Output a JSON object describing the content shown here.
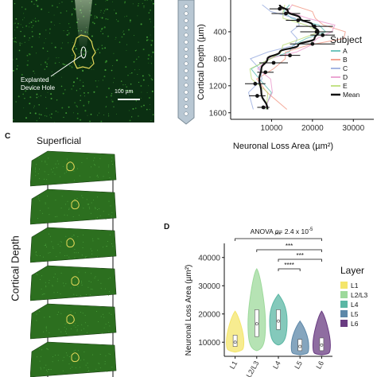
{
  "panel_a": {
    "caption": "Explanted\nDevice Hole",
    "scalebar": "100 µm"
  },
  "panel_b": {
    "y_axis_label": "Cortical Depth (µm)",
    "x_axis_label": "Neuronal Loss Area (µm²)",
    "legend_title": "Subject",
    "legend_colors": {
      "A": "#4fb7ad",
      "B": "#f08e78",
      "C": "#8fa4dc",
      "D": "#e890c8",
      "E": "#b4da6a",
      "Mean": "#111111"
    }
  },
  "panel_c": {
    "label": "C",
    "top_label": "Superficial",
    "side_label": "Cortical Depth",
    "slice_fill": "#2c6f1f",
    "outline_color": "#e6d95a"
  },
  "panel_d": {
    "label": "D",
    "legend_title": "Layer",
    "layer_colors": {
      "L1": "#f4e56b",
      "L2/L3": "#9dd99b",
      "L4": "#5bb7a4",
      "L5": "#5c87a8",
      "L6": "#6a3c82"
    },
    "anova_prefix": "ANOVA ",
    "anova_p": "p",
    "anova_value": "= 2.4 x 10",
    "anova_exp": "-5",
    "significance": [
      "**",
      "***",
      "***",
      "****"
    ]
  },
  "chart_data": [
    {
      "type": "line",
      "orientation": "vertical-depth",
      "xlabel": "Neuronal Loss Area (µm²)",
      "ylabel": "Cortical Depth (µm)",
      "xticks": [
        "10000",
        "20000",
        "30000"
      ],
      "yticks": [
        "400",
        "800",
        "1200",
        "1600"
      ],
      "xlim": [
        0,
        35000
      ],
      "ylim": [
        0,
        1650
      ],
      "legend": [
        "A",
        "B",
        "C",
        "D",
        "E",
        "Mean"
      ],
      "series": [
        {
          "name": "Mean",
          "x": [
            12000,
            14000,
            17000,
            20000,
            21500,
            20500,
            16500,
            12000,
            9000,
            7500,
            7000,
            7500,
            9000
          ],
          "y": [
            0,
            100,
            200,
            300,
            400,
            500,
            600,
            700,
            800,
            950,
            1100,
            1300,
            1550
          ]
        }
      ],
      "mean_points": [
        {
          "x": 12000,
          "y": 60,
          "err": 2500
        },
        {
          "x": 13500,
          "y": 130,
          "err": 3500
        },
        {
          "x": 16500,
          "y": 230,
          "err": 3000
        },
        {
          "x": 20500,
          "y": 320,
          "err": 4500
        },
        {
          "x": 21000,
          "y": 400,
          "err": 4000
        },
        {
          "x": 22500,
          "y": 450,
          "err": 3000
        },
        {
          "x": 20000,
          "y": 580,
          "err": 5500
        },
        {
          "x": 14500,
          "y": 750,
          "err": 2500
        },
        {
          "x": 10500,
          "y": 860,
          "err": 3500
        },
        {
          "x": 8500,
          "y": 1000,
          "err": 2000
        },
        {
          "x": 6000,
          "y": 1170,
          "err": 2500
        },
        {
          "x": 6500,
          "y": 1350,
          "err": 2000
        },
        {
          "x": 8000,
          "y": 1520,
          "err": 1500
        }
      ]
    },
    {
      "type": "violin",
      "title": "ANOVA p= 2.4 x 10-5",
      "xlabel": "",
      "ylabel": "Neuronal Loss Area (µm²)",
      "categories": [
        "L1",
        "L2/L3",
        "L4",
        "L5",
        "L6"
      ],
      "yticks": [
        "10000",
        "20000",
        "30000",
        "40000"
      ],
      "ylim": [
        5000,
        45000
      ],
      "distributions": [
        {
          "name": "L1",
          "min": 6500,
          "q1": 8500,
          "median": 10000,
          "q3": 12500,
          "max": 21000
        },
        {
          "name": "L2/L3",
          "min": 7000,
          "q1": 12000,
          "median": 16500,
          "q3": 21500,
          "max": 36000
        },
        {
          "name": "L4",
          "min": 9000,
          "q1": 14500,
          "median": 17500,
          "q3": 21500,
          "max": 27000
        },
        {
          "name": "L5",
          "min": 5500,
          "q1": 7000,
          "median": 8500,
          "q3": 11000,
          "max": 17500
        },
        {
          "name": "L6",
          "min": 5500,
          "q1": 7000,
          "median": 9000,
          "q3": 11500,
          "max": 21000
        }
      ],
      "comparisons": [
        {
          "from": "L1",
          "to": "L6",
          "label": "**"
        },
        {
          "from": "L2/L3",
          "to": "L6",
          "label": "***"
        },
        {
          "from": "L4",
          "to": "L6",
          "label": "***"
        },
        {
          "from": "L4",
          "to": "L5",
          "label": "****"
        }
      ]
    }
  ]
}
